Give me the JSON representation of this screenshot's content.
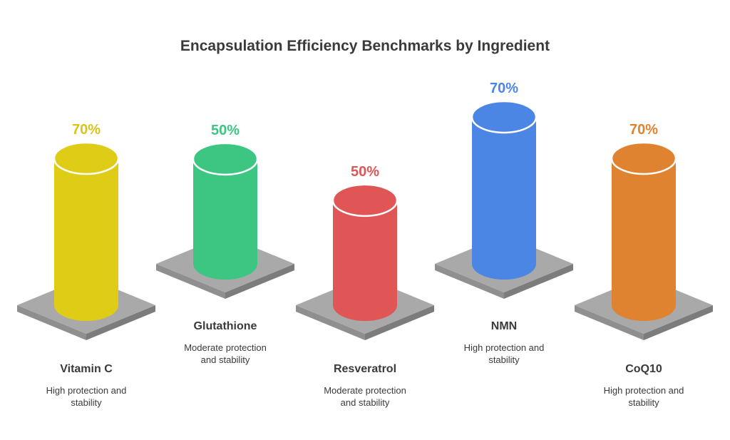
{
  "chart_data": {
    "type": "bar",
    "title": "Encapsulation Efficiency Benchmarks by Ingredient",
    "categories": [
      "Vitamin C",
      "Glutathione",
      "Resveratrol",
      "NMN",
      "CoQ10"
    ],
    "values": [
      70,
      50,
      50,
      70,
      70
    ],
    "value_labels": [
      "70%",
      "50%",
      "50%",
      "70%",
      "70%"
    ],
    "descriptions": [
      [
        "High protection and",
        "stability"
      ],
      [
        "Moderate protection",
        "and stability"
      ],
      [
        "Moderate protection",
        "and stability"
      ],
      [
        "High protection and",
        "stability"
      ],
      [
        "High protection and",
        "stability"
      ]
    ],
    "colors": [
      "#dfcc16",
      "#3cc682",
      "#e05656",
      "#4c86e4",
      "#e08330"
    ],
    "label_colors": [
      "#d8c41a",
      "#3cc682",
      "#e05656",
      "#4c86e4",
      "#e08330"
    ],
    "base_color": "#a9a9a9",
    "ylim": [
      0,
      70
    ],
    "legend": "none",
    "grid": false
  }
}
